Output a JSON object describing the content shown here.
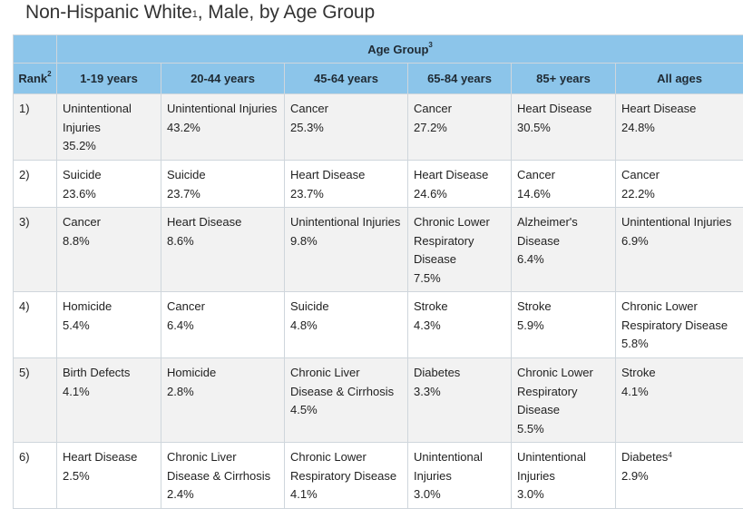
{
  "title": {
    "text": "Non-Hispanic White",
    "sup": "1",
    "rest": ", Male, by Age Group"
  },
  "table": {
    "group_header": {
      "text": "Age Group",
      "sup": "3"
    },
    "rank_header": {
      "text": "Rank",
      "sup": "2"
    },
    "columns": [
      "1-19 years",
      "20-44 years",
      "45-64 years",
      "65-84 years",
      "85+ years",
      "All ages"
    ],
    "rows": [
      {
        "rank": "1)",
        "cells": [
          {
            "cause": "Unintentional Injuries",
            "pct": "35.2%"
          },
          {
            "cause": "Unintentional Injuries",
            "pct": "43.2%"
          },
          {
            "cause": "Cancer",
            "pct": "25.3%"
          },
          {
            "cause": "Cancer",
            "pct": "27.2%"
          },
          {
            "cause": "Heart Disease",
            "pct": "30.5%"
          },
          {
            "cause": "Heart Disease",
            "pct": "24.8%"
          }
        ]
      },
      {
        "rank": "2)",
        "cells": [
          {
            "cause": "Suicide",
            "pct": "23.6%"
          },
          {
            "cause": "Suicide",
            "pct": "23.7%"
          },
          {
            "cause": "Heart Disease",
            "pct": "23.7%"
          },
          {
            "cause": "Heart Disease",
            "pct": "24.6%"
          },
          {
            "cause": "Cancer",
            "pct": "14.6%"
          },
          {
            "cause": "Cancer",
            "pct": "22.2%"
          }
        ]
      },
      {
        "rank": "3)",
        "cells": [
          {
            "cause": "Cancer",
            "pct": "8.8%"
          },
          {
            "cause": "Heart Disease",
            "pct": "8.6%"
          },
          {
            "cause": "Unintentional Injuries",
            "pct": "9.8%"
          },
          {
            "cause": "Chronic Lower Respiratory Disease",
            "pct": "7.5%"
          },
          {
            "cause": "Alzheimer's Disease",
            "pct": "6.4%"
          },
          {
            "cause": "Unintentional Injuries",
            "pct": "6.9%"
          }
        ]
      },
      {
        "rank": "4)",
        "cells": [
          {
            "cause": "Homicide",
            "pct": "5.4%"
          },
          {
            "cause": "Cancer",
            "pct": "6.4%"
          },
          {
            "cause": "Suicide",
            "pct": "4.8%"
          },
          {
            "cause": "Stroke",
            "pct": "4.3%"
          },
          {
            "cause": "Stroke",
            "pct": "5.9%"
          },
          {
            "cause": "Chronic Lower Respiratory Disease",
            "pct": "5.8%"
          }
        ]
      },
      {
        "rank": "5)",
        "cells": [
          {
            "cause": "Birth Defects",
            "pct": "4.1%"
          },
          {
            "cause": "Homicide",
            "pct": "2.8%"
          },
          {
            "cause": "Chronic Liver Disease & Cirrhosis",
            "pct": "4.5%"
          },
          {
            "cause": "Diabetes",
            "pct": "3.3%"
          },
          {
            "cause": "Chronic Lower Respiratory Disease",
            "pct": "5.5%"
          },
          {
            "cause": "Stroke",
            "pct": "4.1%"
          }
        ]
      },
      {
        "rank": "6)",
        "cells": [
          {
            "cause": "Heart Disease",
            "pct": "2.5%"
          },
          {
            "cause": "Chronic Liver Disease & Cirrhosis",
            "pct": "2.4%"
          },
          {
            "cause": "Chronic Lower Respiratory Disease",
            "pct": "4.1%"
          },
          {
            "cause": "Unintentional Injuries",
            "pct": "3.0%"
          },
          {
            "cause": "Unintentional Injuries",
            "pct": "3.0%"
          },
          {
            "cause": "Diabetes",
            "sup": "4",
            "pct": "2.9%"
          }
        ]
      }
    ]
  }
}
